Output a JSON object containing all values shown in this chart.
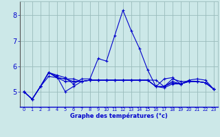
{
  "xlabel": "Graphe des températures (°c)",
  "bg_color": "#cce8e8",
  "line_color": "#0000cc",
  "grid_color": "#99bbbb",
  "series": [
    [
      5.0,
      4.7,
      5.2,
      5.75,
      5.65,
      5.55,
      5.3,
      5.5,
      5.5,
      6.3,
      6.2,
      7.2,
      8.2,
      7.4,
      6.7,
      5.85,
      5.2,
      5.15,
      5.3,
      5.3,
      5.45,
      5.5,
      5.45,
      5.1
    ],
    [
      5.0,
      4.7,
      5.2,
      5.75,
      5.6,
      5.0,
      5.2,
      5.4,
      5.45,
      5.45,
      5.45,
      5.45,
      5.45,
      5.45,
      5.45,
      5.45,
      5.45,
      5.2,
      5.35,
      5.3,
      5.4,
      5.4,
      5.35,
      5.1
    ],
    [
      5.0,
      4.7,
      5.2,
      5.75,
      5.55,
      5.5,
      5.5,
      5.4,
      5.45,
      5.45,
      5.45,
      5.45,
      5.45,
      5.45,
      5.45,
      5.45,
      5.2,
      5.2,
      5.5,
      5.4,
      5.4,
      5.4,
      5.35,
      5.1
    ],
    [
      5.0,
      4.7,
      5.2,
      5.75,
      5.55,
      5.5,
      5.4,
      5.4,
      5.45,
      5.45,
      5.45,
      5.45,
      5.45,
      5.45,
      5.45,
      5.45,
      5.2,
      5.5,
      5.55,
      5.3,
      5.4,
      5.4,
      5.35,
      5.1
    ],
    [
      5.0,
      4.7,
      5.2,
      5.6,
      5.55,
      5.4,
      5.4,
      5.4,
      5.45,
      5.45,
      5.45,
      5.45,
      5.45,
      5.45,
      5.45,
      5.45,
      5.2,
      5.2,
      5.4,
      5.3,
      5.4,
      5.4,
      5.35,
      5.1
    ]
  ],
  "xlim": [
    -0.5,
    23.5
  ],
  "ylim": [
    4.4,
    8.55
  ],
  "xticks": [
    0,
    1,
    2,
    3,
    4,
    5,
    6,
    7,
    8,
    9,
    10,
    11,
    12,
    13,
    14,
    15,
    16,
    17,
    18,
    19,
    20,
    21,
    22,
    23
  ],
  "yticks": [
    5,
    6,
    7,
    8
  ]
}
